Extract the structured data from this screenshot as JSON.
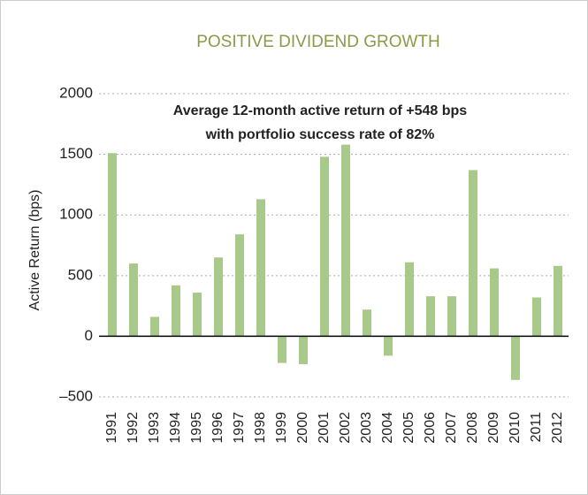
{
  "chart_data": {
    "type": "bar",
    "title": "POSITIVE DIVIDEND GROWTH",
    "annotations": [
      "Average 12-month active return of +548 bps",
      "with portfolio success rate of 82%"
    ],
    "y_label": "Active Return (bps)",
    "categories": [
      "1991",
      "1992",
      "1993",
      "1994",
      "1995",
      "1996",
      "1997",
      "1998",
      "1999",
      "2000",
      "2001",
      "2002",
      "2003",
      "2004",
      "2005",
      "2006",
      "2007",
      "2008",
      "2009",
      "2010",
      "2011",
      "2012"
    ],
    "values": [
      1510,
      600,
      160,
      420,
      360,
      650,
      840,
      1130,
      -220,
      -230,
      1480,
      1580,
      220,
      -160,
      610,
      330,
      330,
      1370,
      560,
      -360,
      320,
      580
    ],
    "color": "#a9c98b",
    "ylim": [
      -580,
      2000
    ],
    "yticks": [
      {
        "value": -500,
        "label": "–500"
      },
      0,
      500,
      1000,
      1500,
      2000
    ],
    "grid": true
  }
}
